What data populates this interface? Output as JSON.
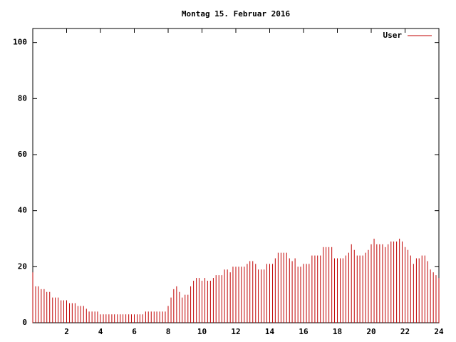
{
  "chart_data": {
    "type": "impulse",
    "title": "Montag 15. Februar 2016",
    "xlim": [
      0,
      24
    ],
    "xticks": [
      2,
      4,
      6,
      8,
      10,
      12,
      14,
      16,
      18,
      20,
      22,
      24
    ],
    "ylim": [
      0,
      105
    ],
    "yticks": [
      0,
      20,
      40,
      60,
      80,
      100
    ],
    "legend": "top-right",
    "series": [
      {
        "name": "User",
        "color": "#c00000",
        "x": [
          0,
          0.17,
          0.33,
          0.5,
          0.67,
          0.83,
          1,
          1.17,
          1.33,
          1.5,
          1.67,
          1.83,
          2,
          2.17,
          2.33,
          2.5,
          2.67,
          2.83,
          3,
          3.17,
          3.33,
          3.5,
          3.67,
          3.83,
          4,
          4.17,
          4.33,
          4.5,
          4.67,
          4.83,
          5,
          5.17,
          5.33,
          5.5,
          5.67,
          5.83,
          6,
          6.17,
          6.33,
          6.5,
          6.67,
          6.83,
          7,
          7.17,
          7.33,
          7.5,
          7.67,
          7.83,
          8,
          8.17,
          8.33,
          8.5,
          8.67,
          8.83,
          9,
          9.17,
          9.33,
          9.5,
          9.67,
          9.83,
          10,
          10.17,
          10.33,
          10.5,
          10.67,
          10.83,
          11,
          11.17,
          11.33,
          11.5,
          11.67,
          11.83,
          12,
          12.17,
          12.33,
          12.5,
          12.67,
          12.83,
          13,
          13.17,
          13.33,
          13.5,
          13.67,
          13.83,
          14,
          14.17,
          14.33,
          14.5,
          14.67,
          14.83,
          15,
          15.17,
          15.33,
          15.5,
          15.67,
          15.83,
          16,
          16.17,
          16.33,
          16.5,
          16.67,
          16.83,
          17,
          17.17,
          17.33,
          17.5,
          17.67,
          17.83,
          18,
          18.17,
          18.33,
          18.5,
          18.67,
          18.83,
          19,
          19.17,
          19.33,
          19.5,
          19.67,
          19.83,
          20,
          20.17,
          20.33,
          20.5,
          20.67,
          20.83,
          21,
          21.17,
          21.33,
          21.5,
          21.67,
          21.83,
          22,
          22.17,
          22.33,
          22.5,
          22.67,
          22.83,
          23,
          23.17,
          23.33,
          23.5,
          23.67,
          23.83,
          24
        ],
        "values": [
          18,
          13,
          13,
          12,
          12,
          11,
          11,
          9,
          9,
          9,
          8,
          8,
          8,
          7,
          7,
          7,
          6,
          6,
          6,
          5,
          4,
          4,
          4,
          4,
          3,
          3,
          3,
          3,
          3,
          3,
          3,
          3,
          3,
          3,
          3,
          3,
          3,
          3,
          3,
          3,
          4,
          4,
          4,
          4,
          4,
          4,
          4,
          4,
          6,
          9,
          12,
          13,
          11,
          9,
          10,
          10,
          13,
          15,
          16,
          16,
          15,
          16,
          15,
          15,
          16,
          17,
          17,
          17,
          19,
          19,
          18,
          20,
          20,
          20,
          20,
          20,
          21,
          22,
          22,
          21,
          19,
          19,
          19,
          21,
          21,
          21,
          23,
          25,
          25,
          25,
          25,
          23,
          22,
          23,
          20,
          20,
          21,
          21,
          21,
          24,
          24,
          24,
          24,
          27,
          27,
          27,
          27,
          23,
          23,
          23,
          23,
          24,
          25,
          28,
          26,
          24,
          24,
          24,
          25,
          26,
          28,
          30,
          28,
          28,
          28,
          27,
          28,
          29,
          29,
          29,
          30,
          29,
          27,
          26,
          24,
          21,
          23,
          23,
          24,
          24,
          22,
          19,
          18,
          17,
          16
        ]
      }
    ]
  }
}
